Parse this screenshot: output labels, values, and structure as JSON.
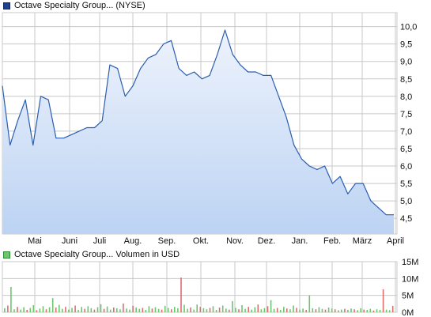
{
  "chart_data": [
    {
      "type": "area",
      "series": [
        {
          "name": "Octave Specialty Group... (NYSE)",
          "x": [
            "2025-04-14",
            "2025-04-21",
            "2025-04-28",
            "2025-05-05",
            "2025-05-12",
            "2025-05-19",
            "2025-05-26",
            "2025-06-02",
            "2025-06-09",
            "2025-06-16",
            "2025-06-23",
            "2025-06-30",
            "2025-07-07",
            "2025-07-14",
            "2025-07-21",
            "2025-07-28",
            "2025-08-04",
            "2025-08-11",
            "2025-08-18",
            "2025-08-25",
            "2025-09-01",
            "2025-09-08",
            "2025-09-15",
            "2025-09-22",
            "2025-09-29",
            "2025-10-06",
            "2025-10-13",
            "2025-10-20",
            "2025-10-27",
            "2025-11-03",
            "2025-11-10",
            "2025-11-17",
            "2025-11-24",
            "2025-12-01",
            "2025-12-08",
            "2025-12-15",
            "2025-12-22",
            "2025-12-29",
            "2026-01-05",
            "2026-01-12",
            "2026-01-19",
            "2026-01-26",
            "2026-02-02",
            "2026-02-09",
            "2026-02-16",
            "2026-02-23",
            "2026-03-02",
            "2026-03-09",
            "2026-03-16",
            "2026-03-23",
            "2026-03-30",
            "2026-04-06"
          ],
          "values": [
            8.3,
            6.6,
            7.3,
            7.9,
            6.6,
            8.0,
            7.9,
            6.8,
            6.8,
            6.9,
            7.0,
            7.1,
            7.1,
            7.3,
            8.9,
            8.8,
            8.0,
            8.3,
            8.8,
            9.1,
            9.2,
            9.5,
            9.6,
            8.8,
            8.6,
            8.7,
            8.5,
            8.6,
            9.2,
            9.9,
            9.2,
            8.9,
            8.7,
            8.7,
            8.6,
            8.6,
            8.0,
            7.4,
            6.6,
            6.2,
            6.0,
            5.9,
            6.0,
            5.5,
            5.7,
            5.2,
            5.5,
            5.5,
            5.0,
            4.8,
            4.6,
            4.6
          ]
        }
      ],
      "x_tick_labels": [
        "Mai",
        "Juni",
        "Juli",
        "Aug.",
        "Sep.",
        "Okt.",
        "Nov.",
        "Dez.",
        "Jan.",
        "Feb.",
        "März",
        "April"
      ],
      "y_ticks": [
        4.5,
        5.0,
        5.5,
        6.0,
        6.5,
        7.0,
        7.5,
        8.0,
        8.5,
        9.0,
        9.5,
        10.0
      ],
      "y_tick_labels": [
        "4,5",
        "5,0",
        "5,5",
        "6,0",
        "6,5",
        "7,0",
        "7,5",
        "8,0",
        "8,5",
        "9,0",
        "9,5",
        "10,0"
      ],
      "ylim": [
        4.05,
        10.4
      ],
      "grid": true,
      "legend": "top-left",
      "colors": {
        "line": "#2a5db0",
        "fill_top": "#eef3fc",
        "fill_bottom": "#bcd3f3",
        "grid": "#c8c8c8"
      }
    },
    {
      "type": "bar",
      "series": [
        {
          "name": "Octave Specialty Group... Volumen in USD",
          "values": [
            1.2,
            2.0,
            7.5,
            0.9,
            1.6,
            0.8,
            1.5,
            0.7,
            1.3,
            2.1,
            0.6,
            1.1,
            1.8,
            0.9,
            1.5,
            4.2,
            1.4,
            2.2,
            1.0,
            1.6,
            0.8,
            1.3,
            2.0,
            0.7,
            1.6,
            1.0,
            1.8,
            1.2,
            0.8,
            1.5,
            2.4,
            1.0,
            1.7,
            0.8,
            1.4,
            1.2,
            0.9,
            2.6,
            1.1,
            0.8,
            1.9,
            1.4,
            1.0,
            1.3,
            0.7,
            1.8,
            1.1,
            1.5,
            1.0,
            0.8,
            1.9,
            1.3,
            0.9,
            1.6,
            1.2,
            10.3,
            2.2,
            1.0,
            1.4,
            0.8,
            2.3,
            1.6,
            1.2,
            0.9,
            1.3,
            1.8,
            0.7,
            1.4,
            2.0,
            1.1,
            0.8,
            3.3,
            1.3,
            0.9,
            2.1,
            1.0,
            1.6,
            0.8,
            1.5,
            2.3,
            0.9,
            1.2,
            1.8,
            3.6,
            1.0,
            1.3,
            0.7,
            1.6,
            1.1,
            0.9,
            2.0,
            1.3,
            0.8,
            1.1,
            0.7,
            5.0,
            1.2,
            0.9,
            1.5,
            1.0,
            0.8,
            1.4,
            1.1,
            0.9,
            0.6,
            0.8,
            1.0,
            0.7,
            1.1,
            0.9,
            0.6,
            1.2,
            0.8,
            0.7,
            1.0,
            0.5,
            0.9,
            0.7,
            6.8,
            0.8,
            0.6,
            1.9
          ]
        }
      ],
      "y_ticks": [
        0,
        5,
        10,
        15
      ],
      "y_tick_labels": [
        "0M",
        "5M",
        "10M",
        "15M"
      ],
      "ylim": [
        0,
        15
      ],
      "legend": "top-left",
      "colors": {
        "bar_a": "#6fc46f",
        "bar_b": "#d97070",
        "grid": "#c8c8c8"
      }
    }
  ]
}
